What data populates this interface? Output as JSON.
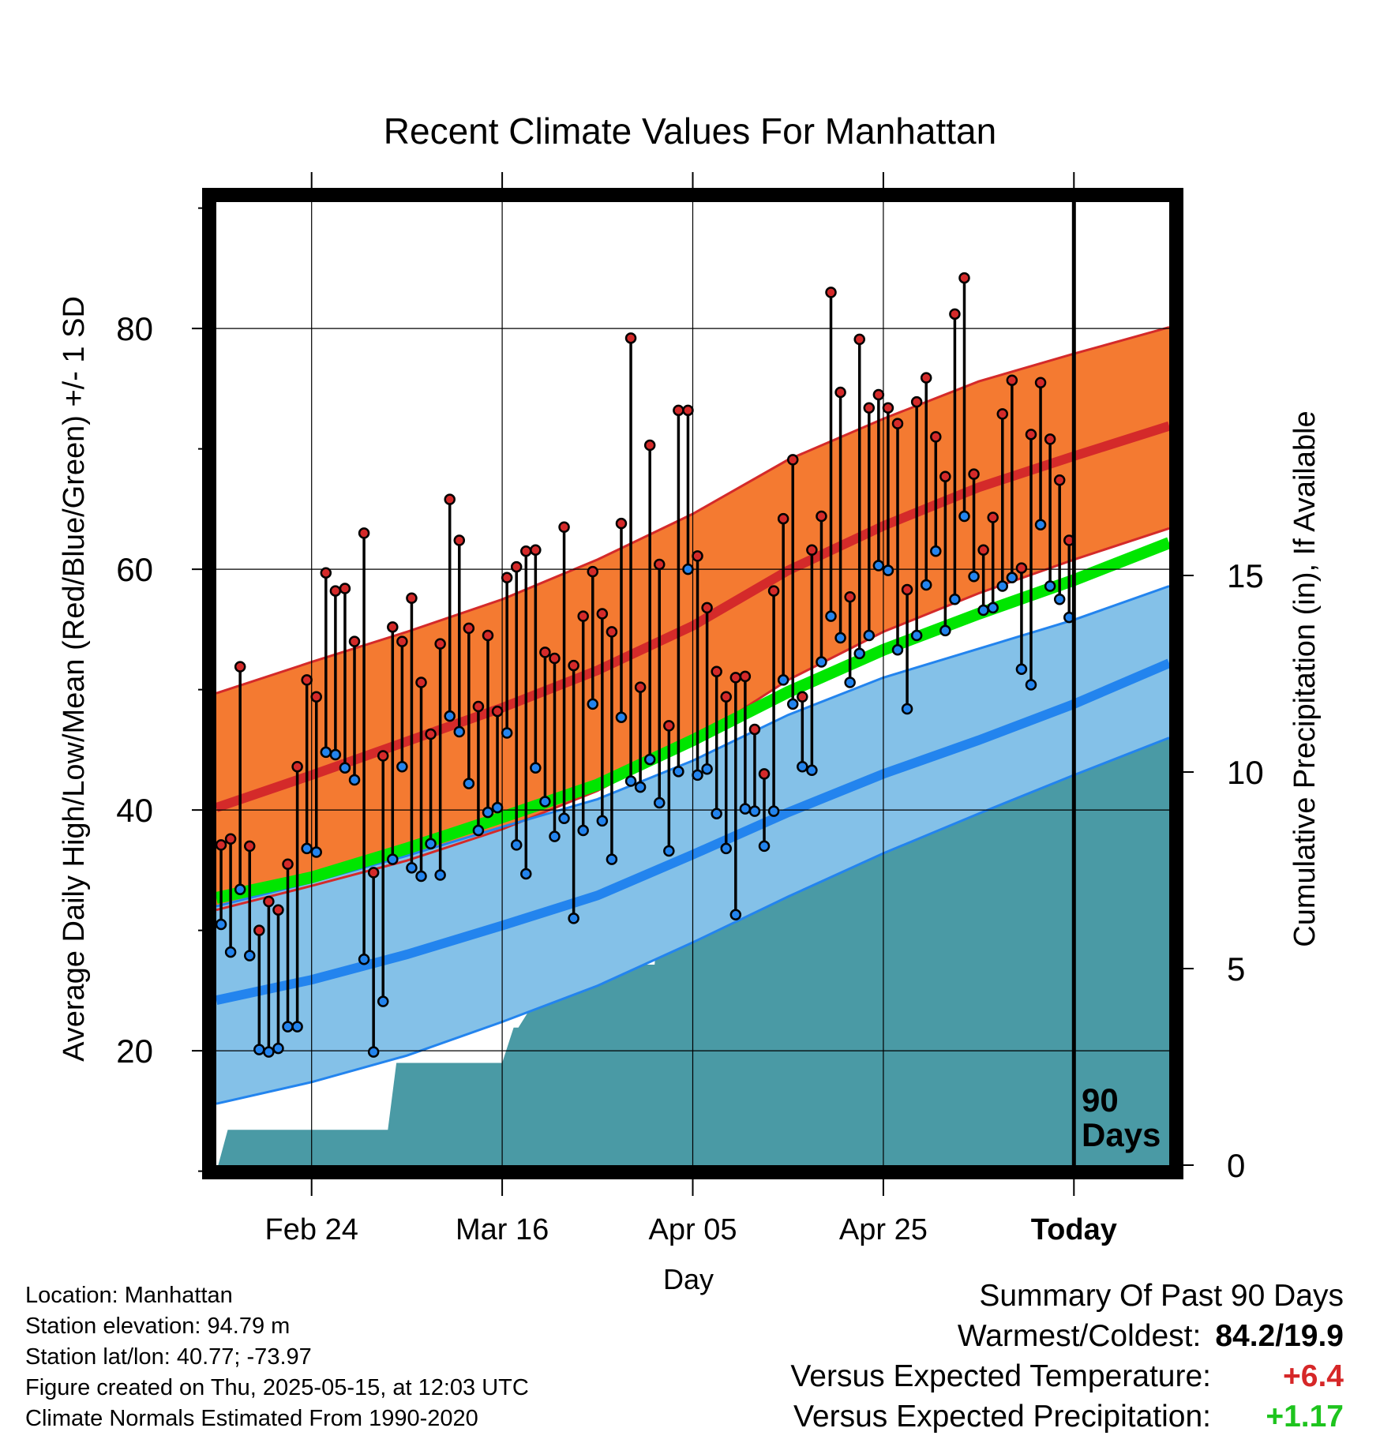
{
  "chart_data": {
    "type": "line",
    "title": "Recent Climate Values For Manhattan",
    "ylabel": "Average Daily High/Low/Mean (Red/Blue/Green) +/- 1 SD",
    "y2label": "Cumulative Precipitation (in), If Available",
    "xlabel": "Day",
    "ylim": [
      10.5,
      90.5
    ],
    "y2lim": [
      0,
      24.5
    ],
    "yticks": [
      20,
      40,
      60,
      80
    ],
    "yticks_minor": [
      10,
      30,
      50,
      70,
      90
    ],
    "y2ticks": [
      0,
      5,
      10,
      15
    ],
    "xlim": [
      0,
      100
    ],
    "xticks": [
      {
        "x": 10,
        "label": "Feb 24"
      },
      {
        "x": 30,
        "label": "Mar 16"
      },
      {
        "x": 50,
        "label": "Apr 05"
      },
      {
        "x": 70,
        "label": "Apr 25"
      },
      {
        "x": 90,
        "label": "Today"
      }
    ],
    "today_x": 90,
    "today_label_1": "90",
    "today_label_2": "Days",
    "grid": true,
    "colors": {
      "high_band": "#f47a31",
      "high_mean": "#d42a2a",
      "low_band": "#84c1e8",
      "low_mean": "#2384ee",
      "mean_normal": "#00e600",
      "precip": "#4a9aa5",
      "high_dot": "#d42a2a",
      "low_dot": "#2384ee"
    },
    "normals": {
      "x": [
        0,
        10,
        20,
        30,
        40,
        50,
        60,
        70,
        80,
        90,
        100
      ],
      "high_mean": [
        40.2,
        42.9,
        45.7,
        48.5,
        51.6,
        55.3,
        59.9,
        63.6,
        66.8,
        69.4,
        71.9
      ],
      "high_plus_sd": [
        49.7,
        52.3,
        54.8,
        57.5,
        60.8,
        64.6,
        69.1,
        72.5,
        75.6,
        77.9,
        80.1
      ],
      "high_minus_sd": [
        31.7,
        33.7,
        35.8,
        38.4,
        41.6,
        45.7,
        50.8,
        54.8,
        58.0,
        60.8,
        63.4
      ],
      "low_mean": [
        24.2,
        25.9,
        28.0,
        30.4,
        32.9,
        36.3,
        39.8,
        43.0,
        45.8,
        48.8,
        52.2
      ],
      "low_plus_sd": [
        32.0,
        34.0,
        36.2,
        38.6,
        40.9,
        44.1,
        47.9,
        51.0,
        53.4,
        55.8,
        58.6
      ],
      "low_minus_sd": [
        15.6,
        17.4,
        19.6,
        22.4,
        25.4,
        29.0,
        32.8,
        36.4,
        39.7,
        42.9,
        46.0
      ],
      "mean": [
        32.7,
        34.4,
        36.8,
        39.4,
        42.1,
        45.8,
        49.8,
        53.3,
        56.3,
        59.1,
        62.2
      ]
    },
    "daily": {
      "x": [
        0,
        1,
        2,
        3,
        4,
        5,
        6,
        7,
        8,
        9,
        10,
        11,
        12,
        13,
        14,
        15,
        16,
        17,
        18,
        19,
        20,
        21,
        22,
        23,
        24,
        25,
        26,
        27,
        28,
        29,
        30,
        31,
        32,
        33,
        34,
        35,
        36,
        37,
        38,
        39,
        40,
        41,
        42,
        43,
        44,
        45,
        46,
        47,
        48,
        49,
        50,
        51,
        52,
        53,
        54,
        55,
        56,
        57,
        58,
        59,
        60,
        61,
        62,
        63,
        64,
        65,
        66,
        67,
        68,
        69,
        70,
        71,
        72,
        73,
        74,
        75,
        76,
        77,
        78,
        79,
        80,
        81,
        82,
        83,
        84,
        85,
        86,
        87,
        88,
        89
      ],
      "high": [
        37.1,
        37.6,
        51.9,
        37.0,
        30.0,
        32.4,
        31.7,
        35.5,
        43.6,
        50.8,
        49.4,
        59.7,
        58.2,
        58.4,
        54.0,
        63.0,
        34.8,
        44.5,
        55.2,
        54.0,
        57.6,
        50.6,
        46.3,
        53.8,
        65.8,
        62.4,
        55.1,
        48.6,
        54.5,
        48.2,
        59.3,
        60.2,
        61.5,
        61.6,
        53.1,
        52.6,
        63.5,
        52.0,
        56.1,
        59.8,
        56.3,
        54.8,
        63.8,
        79.2,
        50.2,
        70.3,
        60.4,
        47.0,
        73.2,
        73.2,
        61.1,
        56.8,
        51.5,
        49.4,
        51.0,
        51.1,
        46.7,
        43.0,
        58.2,
        64.2,
        69.1,
        49.4,
        61.6,
        64.4,
        83.0,
        74.7,
        57.7,
        79.1,
        73.4,
        74.5,
        73.4,
        72.1,
        58.3,
        73.9,
        75.9,
        71.0,
        67.7,
        81.2,
        84.2,
        67.9,
        61.6,
        64.3,
        72.9,
        75.7,
        60.1,
        71.2,
        75.5,
        70.8,
        67.4,
        62.4
      ],
      "low": [
        30.5,
        28.2,
        33.4,
        27.9,
        20.1,
        19.9,
        20.2,
        22.0,
        22.0,
        36.8,
        36.5,
        44.8,
        44.6,
        43.5,
        42.5,
        27.6,
        19.9,
        24.1,
        35.9,
        43.6,
        35.2,
        34.5,
        37.2,
        34.6,
        47.8,
        46.5,
        42.2,
        38.3,
        39.8,
        40.2,
        46.4,
        37.1,
        34.7,
        43.5,
        40.7,
        37.8,
        39.3,
        31.0,
        38.3,
        48.8,
        39.1,
        35.9,
        47.7,
        42.4,
        41.9,
        44.2,
        40.6,
        36.6,
        43.2,
        60.0,
        42.9,
        43.4,
        39.7,
        36.8,
        31.3,
        40.1,
        39.9,
        37.0,
        39.9,
        50.8,
        48.8,
        43.6,
        43.3,
        52.3,
        56.1,
        54.3,
        50.6,
        53.0,
        54.5,
        60.3,
        59.9,
        53.3,
        48.4,
        54.5,
        58.7,
        61.5,
        54.9,
        57.5,
        64.4,
        59.4,
        56.6,
        56.8,
        58.6,
        59.3,
        51.7,
        50.4,
        63.7,
        58.6,
        57.5,
        56.0
      ]
    },
    "precip": {
      "x": [
        0,
        0.2,
        1.2,
        1.5,
        5,
        10,
        18,
        18.9,
        19.1,
        30,
        31.2,
        31.7,
        33,
        33.4,
        34.8,
        35.1,
        37,
        37.3,
        40,
        40.3,
        46,
        46.4,
        48,
        48.3,
        50,
        50.9,
        51.5,
        52.3,
        54,
        56,
        57.1,
        57.5,
        61,
        61.5,
        70,
        70.3,
        71,
        74,
        77.5,
        78.5,
        79,
        80.3,
        81,
        81.5,
        83,
        84,
        84.3,
        86,
        86.5,
        87.7,
        88.1,
        89.7,
        90,
        100
      ],
      "values": [
        0.0,
        0.0,
        0.9,
        0.9,
        0.9,
        0.9,
        0.9,
        2.6,
        2.6,
        2.6,
        3.5,
        3.5,
        4.0,
        4.6,
        4.6,
        4.6,
        4.9,
        5.1,
        5.1,
        5.1,
        5.1,
        6.4,
        6.5,
        6.5,
        6.9,
        7.4,
        7.8,
        7.8,
        7.8,
        7.8,
        8.6,
        8.6,
        8.8,
        8.8,
        8.8,
        9.5,
        9.5,
        9.5,
        9.5,
        9.7,
        10.0,
        10.5,
        11.0,
        11.1,
        11.1,
        11.5,
        11.8,
        11.8,
        11.8,
        11.9,
        12.9,
        13.0,
        13.0,
        13.0
      ]
    }
  },
  "footer": {
    "location": "Location: Manhattan",
    "elevation": "Station elevation: 94.79 m",
    "latlon": "Station lat/lon: 40.77; -73.97",
    "created": "Figure created on Thu, 2025-05-15, at 12:03 UTC",
    "normals": "Climate Normals Estimated From 1990-2020"
  },
  "summary": {
    "heading": "Summary Of Past 90 Days",
    "warm_cold_label": "Warmest/Coldest:",
    "warm_cold_value": "84.2/19.9",
    "temp_label": "Versus Expected Temperature:",
    "temp_value": "+6.4",
    "precip_label": "Versus Expected Precipitation:",
    "precip_value": "+1.17"
  }
}
